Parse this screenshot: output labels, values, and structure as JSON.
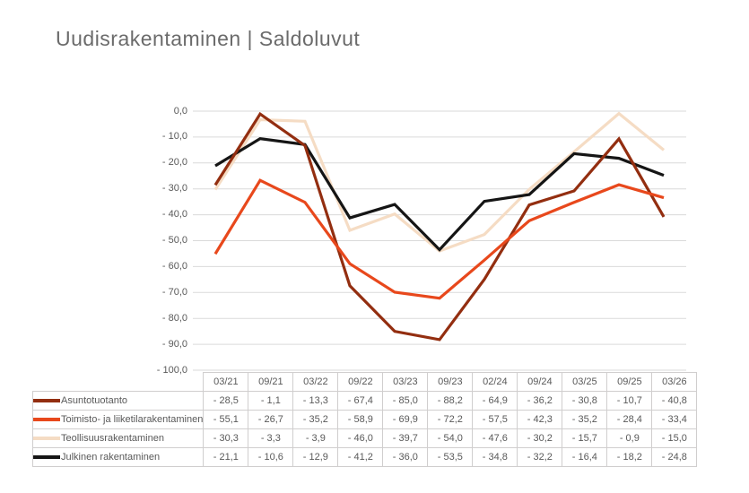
{
  "title": "Uudisrakentaminen | Saldoluvut",
  "chart_data": {
    "type": "line",
    "title": "Uudisrakentaminen | Saldoluvut",
    "categories": [
      "03/21",
      "09/21",
      "03/22",
      "09/22",
      "03/23",
      "09/23",
      "02/24",
      "09/24",
      "03/25",
      "09/25",
      "03/26"
    ],
    "series": [
      {
        "name": "Asuntotuotanto",
        "color": "#932e10",
        "values": [
          -28.5,
          -1.1,
          -13.3,
          -67.4,
          -85.0,
          -88.2,
          -64.9,
          -36.2,
          -30.8,
          -10.7,
          -40.8
        ]
      },
      {
        "name": "Toimisto- ja liiketilarakentaminen",
        "color": "#e8481c",
        "values": [
          -55.1,
          -26.7,
          -35.2,
          -58.9,
          -69.9,
          -72.2,
          -57.5,
          -42.3,
          -35.2,
          -28.4,
          -33.4
        ]
      },
      {
        "name": "Teollisuusrakentaminen",
        "color": "#f5dcc4",
        "values": [
          -30.3,
          -3.3,
          -3.9,
          -46.0,
          -39.7,
          -54.0,
          -47.6,
          -30.2,
          -15.7,
          -0.9,
          -15.0
        ]
      },
      {
        "name": "Julkinen rakentaminen",
        "color": "#151515",
        "values": [
          -21.1,
          -10.6,
          -12.9,
          -41.2,
          -36.0,
          -53.5,
          -34.8,
          -32.2,
          -16.4,
          -18.2,
          -24.8
        ]
      }
    ],
    "ylim": [
      -100,
      0
    ],
    "ytick_labels": [
      "0,0",
      "- 10,0",
      "- 20,0",
      "- 30,0",
      "- 40,0",
      "- 50,0",
      "- 60,0",
      "- 70,0",
      "- 80,0",
      "- 90,0",
      "- 100,0"
    ],
    "grid": true,
    "legend_position": "table-left",
    "number_format": "comma-decimal, minus with space"
  },
  "colors": {
    "gridline": "#dadada",
    "table_border": "#d0cece",
    "axis_text": "#595959",
    "title_text": "#6b6b6b"
  }
}
